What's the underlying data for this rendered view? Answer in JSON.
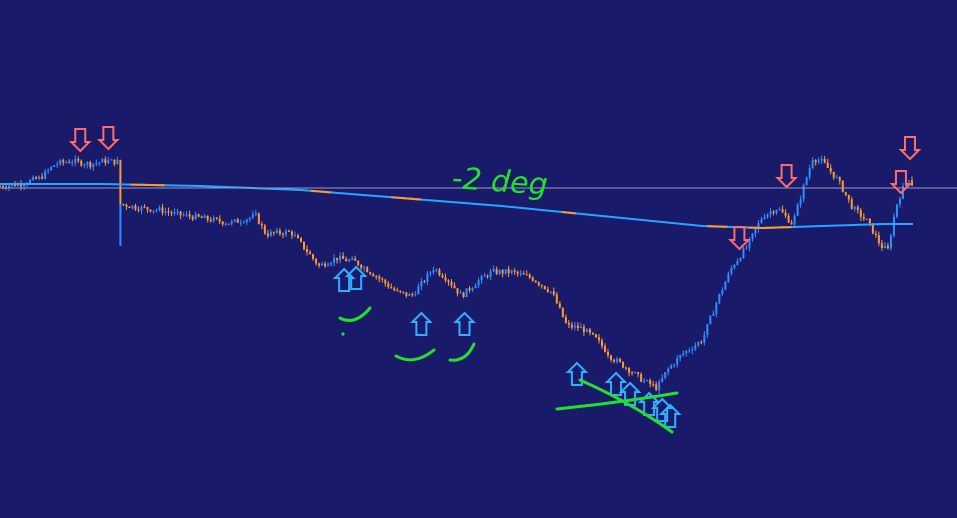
{
  "colors": {
    "background": "#1a1a6b",
    "bull_candle": "#2f8fff",
    "bear_candle": "#ff9a2e",
    "moving_average": "#24a8ff",
    "moving_average_alt": "#ff9a2e",
    "price_line": "#9a9ac8",
    "buy_arrow": "#2fb0ff",
    "sell_arrow": "#ff6a6a",
    "annotation": "#22e02c"
  },
  "icons": {
    "buy": "arrow-up-outline-icon",
    "sell": "arrow-down-outline-icon"
  },
  "annotation_text": "-2 deg",
  "chart_data": {
    "type": "line",
    "title": "",
    "xlabel": "",
    "ylabel": "",
    "x_range": [
      0,
      910
    ],
    "ylim": [
      -230,
      100
    ],
    "grid": false,
    "legend": "none",
    "current_price": 0,
    "series": [
      {
        "kind": "price",
        "x": [
          0,
          20,
          40,
          55,
          70,
          90,
          105,
          118,
          120,
          140,
          160,
          175,
          200,
          230,
          255,
          265,
          290,
          305,
          318,
          335,
          355,
          375,
          395,
          410,
          420,
          432,
          445,
          460,
          475,
          490,
          510,
          530,
          550,
          565,
          580,
          595,
          610,
          625,
          640,
          655,
          665,
          680,
          700,
          715,
          730,
          745,
          760,
          775,
          790,
          800,
          810,
          820,
          835,
          850,
          865,
          878,
          885,
          893,
          905,
          910
        ],
        "y": [
          2,
          4,
          10,
          24,
          27,
          24,
          27,
          26,
          -16,
          -20,
          -22,
          -26,
          -30,
          -35,
          -28,
          -46,
          -44,
          -62,
          -78,
          -70,
          -74,
          -88,
          -104,
          -108,
          -96,
          -80,
          -90,
          -108,
          -94,
          -84,
          -84,
          -90,
          -104,
          -138,
          -140,
          -152,
          -170,
          -180,
          -192,
          -200,
          -182,
          -166,
          -152,
          -112,
          -78,
          -58,
          -28,
          -20,
          -36,
          -2,
          30,
          26,
          8,
          -20,
          -34,
          -58,
          -62,
          -18,
          12,
          2
        ]
      },
      {
        "kind": "moving_average",
        "x": [
          0,
          100,
          200,
          300,
          400,
          500,
          600,
          700,
          760,
          820,
          880,
          910
        ],
        "y": [
          4,
          4,
          2,
          -2,
          -10,
          -18,
          -28,
          -38,
          -40,
          -38,
          -36,
          -36
        ]
      }
    ],
    "buy_signals": [
      {
        "x": 343,
        "y": -92
      },
      {
        "x": 355,
        "y": -90
      },
      {
        "x": 420,
        "y": -136
      },
      {
        "x": 463,
        "y": -136
      },
      {
        "x": 575,
        "y": -186
      },
      {
        "x": 614,
        "y": -196
      },
      {
        "x": 628,
        "y": -206
      },
      {
        "x": 647,
        "y": -216
      },
      {
        "x": 660,
        "y": -222
      },
      {
        "x": 668,
        "y": -228
      }
    ],
    "sell_signals": [
      {
        "x": 80,
        "y": 48
      },
      {
        "x": 108,
        "y": 50
      },
      {
        "x": 784,
        "y": 12
      },
      {
        "x": 737,
        "y": -50
      },
      {
        "x": 898,
        "y": 6
      },
      {
        "x": 907,
        "y": 40
      }
    ],
    "annotations": [
      {
        "type": "text",
        "text_ref": "annotation_text",
        "x": 450,
        "y": 4
      }
    ]
  }
}
